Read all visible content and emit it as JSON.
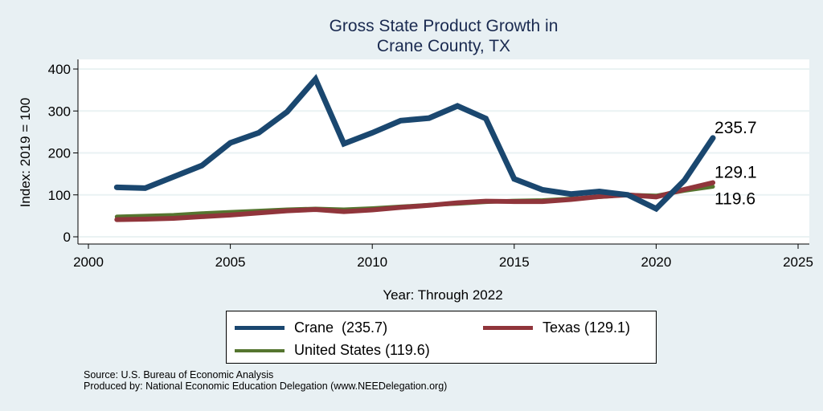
{
  "chart_data": {
    "type": "line",
    "title": "Gross State Product Growth in",
    "subtitle": "Crane County, TX",
    "xlabel": "Year: Through 2022",
    "ylabel": "Index: 2019 = 100",
    "xlim": [
      2000,
      2025
    ],
    "ylim": [
      0,
      400
    ],
    "xticks": [
      2000,
      2005,
      2010,
      2015,
      2020,
      2025
    ],
    "yticks": [
      0,
      100,
      200,
      300,
      400
    ],
    "grid": true,
    "legend_position": "bottom",
    "x": [
      2001,
      2002,
      2003,
      2004,
      2005,
      2006,
      2007,
      2008,
      2009,
      2010,
      2011,
      2012,
      2013,
      2014,
      2015,
      2016,
      2017,
      2018,
      2019,
      2020,
      2021,
      2022
    ],
    "series": [
      {
        "name": "Crane",
        "legend_label": "Crane  (235.7)",
        "color": "#1a476f",
        "end_label": "235.7",
        "values": [
          118,
          116,
          143,
          170,
          224,
          248,
          298,
          376,
          222,
          248,
          277,
          283,
          312,
          282,
          138,
          112,
          102,
          108,
          100,
          67,
          135,
          235.7
        ]
      },
      {
        "name": "Texas",
        "legend_label": "Texas (129.1)",
        "color": "#90353b",
        "end_label": "129.1",
        "values": [
          41,
          42,
          44,
          48,
          52,
          57,
          62,
          65,
          60,
          64,
          70,
          75,
          81,
          85,
          84,
          84,
          89,
          96,
          100,
          95,
          113,
          129.1
        ]
      },
      {
        "name": "United States",
        "legend_label": "United States (119.6)",
        "color": "#55752f",
        "end_label": "119.6",
        "values": [
          48,
          50,
          52,
          56,
          59,
          62,
          65,
          67,
          65,
          68,
          72,
          76,
          79,
          83,
          86,
          87,
          91,
          95,
          100,
          98,
          110,
          119.6
        ]
      }
    ]
  },
  "notes": {
    "source": "Source: U.S. Bureau of Economic Analysis",
    "produced_by": "Produced by: National Economic Education Delegation (www.NEEDelegation.org)"
  }
}
